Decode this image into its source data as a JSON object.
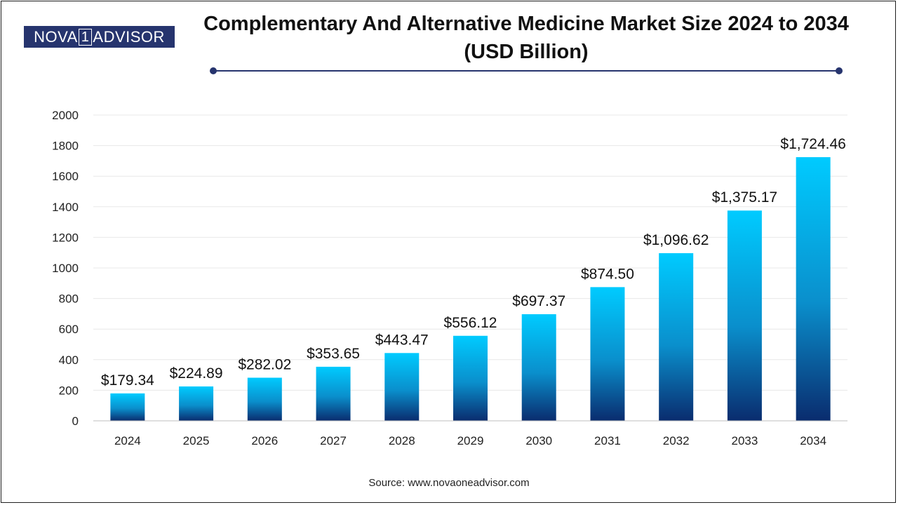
{
  "logo": {
    "left": "NOVA",
    "number": "1",
    "right": "ADVISOR"
  },
  "source": "Source: www.novaoneadvisor.com",
  "colors": {
    "brand": "#26346e",
    "bar_top": "#00cbff",
    "bar_bottom": "#0a2c6e",
    "grid": "#e8e8e8"
  },
  "chart_data": {
    "type": "bar",
    "title": "Complementary And Alternative Medicine Market Size 2024 to 2034 (USD Billion)",
    "xlabel": "",
    "ylabel": "",
    "ylim": [
      0,
      2000
    ],
    "yticks": [
      "0",
      "200",
      "400",
      "600",
      "800",
      "1000",
      "1200",
      "1400",
      "1600",
      "1800",
      "2000"
    ],
    "grid": true,
    "categories": [
      "2024",
      "2025",
      "2026",
      "2027",
      "2028",
      "2029",
      "2030",
      "2031",
      "2032",
      "2033",
      "2034"
    ],
    "values": [
      179.34,
      224.89,
      282.02,
      353.65,
      443.47,
      556.12,
      697.37,
      874.5,
      1096.62,
      1375.17,
      1724.46
    ],
    "value_labels": [
      "$179.34",
      "$224.89",
      "$282.02",
      "$353.65",
      "$443.47",
      "$556.12",
      "$697.37",
      "$874.50",
      "$1,096.62",
      "$1,375.17",
      "$1,724.46"
    ]
  }
}
